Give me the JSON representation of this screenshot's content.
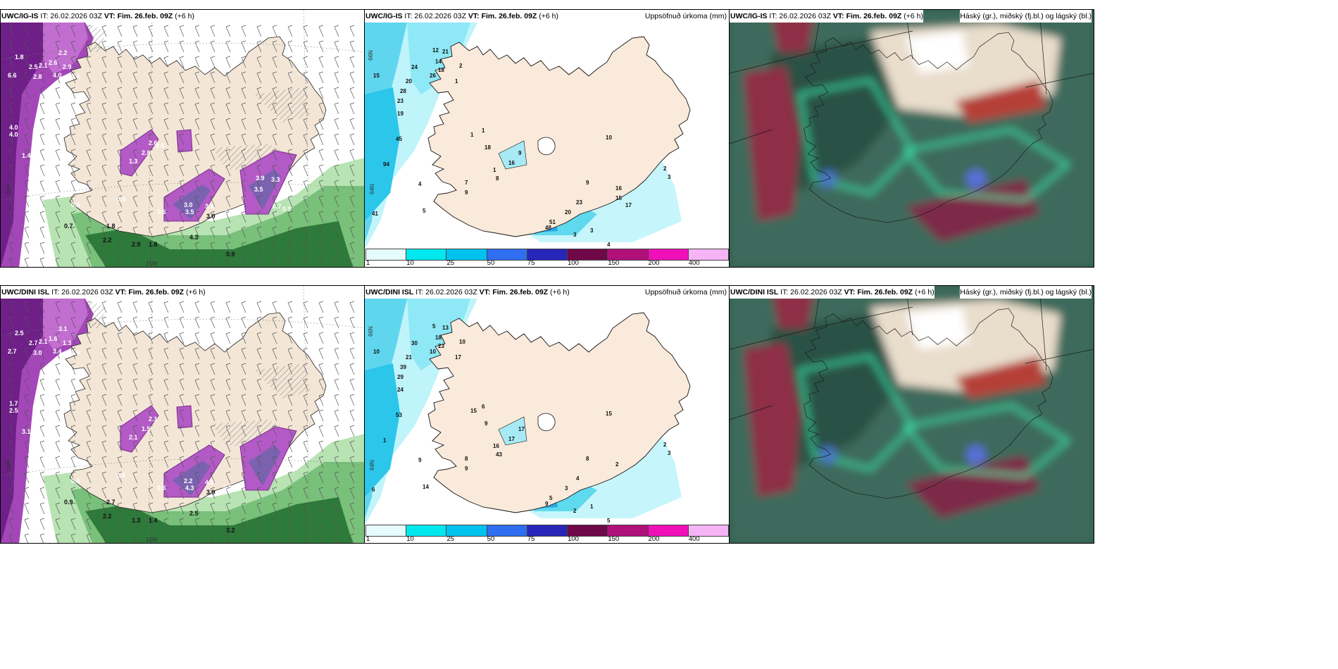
{
  "panels": [
    {
      "id": "p1",
      "model": "UWC/IG-IS",
      "it": "IT: 26.02.2026 03Z",
      "vt": "VT: Fim. 26.feb. 09Z",
      "lead": "(+6 h)",
      "right": "",
      "type": "precip-rate"
    },
    {
      "id": "p2",
      "model": "UWC/IG-IS",
      "it": "IT: 26.02.2026 03Z",
      "vt": "VT: Fim. 26.feb. 09Z",
      "lead": "(+6 h)",
      "right": "Uppsöfnuð úrkoma (mm)",
      "type": "accum"
    },
    {
      "id": "p3",
      "model": "UWC/IG-IS",
      "it": "IT: 26.02.2026 03Z",
      "vt": "VT: Fim. 26.feb. 09Z",
      "lead": "(+6 h)",
      "right": "Háský (gr.), miðský (fj.bl.) og lágský (bl.)",
      "type": "cloud"
    },
    {
      "id": "p4",
      "model": "UWC/DINI ISL",
      "it": "IT: 26.02.2026 03Z",
      "vt": "VT: Fim. 26.feb. 09Z",
      "lead": "(+6 h)",
      "right": "",
      "type": "precip-rate"
    },
    {
      "id": "p5",
      "model": "UWC/DINI ISL",
      "it": "IT: 26.02.2026 03Z",
      "vt": "VT: Fim. 26.feb. 09Z",
      "lead": "(+6 h)",
      "right": "Uppsöfnuð úrkoma (mm)",
      "type": "accum"
    },
    {
      "id": "p6",
      "model": "UWC/DINI ISL",
      "it": "IT: 26.02.2026 03Z",
      "vt": "VT: Fim. 26.feb. 09Z",
      "lead": "(+6 h)",
      "right": "Háský (gr.), miðský (fj.bl.) og lágský (bl.)",
      "type": "cloud"
    }
  ],
  "colorbar": {
    "labels": [
      "1",
      "10",
      "25",
      "50",
      "75",
      "100",
      "150",
      "200",
      "400"
    ],
    "colors": [
      "#e6fbfd",
      "#00e8ee",
      "#00c2ee",
      "#2f6ef0",
      "#2626b8",
      "#6e0848",
      "#b0107a",
      "#f010b8",
      "#f6b4f6"
    ]
  },
  "axis_labels": {
    "lat66": "66N",
    "lat64": "64N",
    "lon15": "15W"
  },
  "precip_values": {
    "p1": [
      "1.8",
      "2.5",
      "2.8",
      "4.0",
      "2.1",
      "2.6",
      "2.2",
      "2.9",
      "4.0",
      "2.4",
      "6.6",
      "4.0",
      "1.4",
      "1.9",
      "2.6",
      "2.8",
      "1.3",
      "3.0",
      "3.5",
      "3.4",
      "3.0",
      "2.9",
      "0.9",
      "0.8",
      "0.7",
      "0.6",
      "1.8",
      "2.2",
      "2.9",
      "1.8",
      "4.3",
      "0.9",
      "2.6",
      "3.9",
      "3.5",
      "3.3",
      "0.7",
      "0.9"
    ],
    "p4": [
      "2.5",
      "2.7",
      "3.0",
      "1.7",
      "2.1",
      "1.6",
      "3.1",
      "1.3",
      "3.4",
      "1.9",
      "2.7",
      "2.5",
      "3.1",
      "3.6",
      "2.1",
      "1.5",
      "2.1",
      "2.2",
      "4.3",
      "4.0",
      "3.9",
      "0.7",
      "0.6",
      "0.6",
      "0.9",
      "0.6",
      "2.7",
      "2.2",
      "1.3",
      "1.4",
      "2.5",
      "3.2"
    ]
  },
  "accum_values": {
    "p2": [
      "15",
      "19",
      "23",
      "28",
      "20",
      "24",
      "26",
      "12",
      "14",
      "18",
      "21",
      "2",
      "1",
      "45",
      "94",
      "41",
      "4",
      "5",
      "1",
      "7",
      "9",
      "18",
      "16",
      "9",
      "1",
      "8",
      "10",
      "9",
      "16",
      "20",
      "23",
      "51",
      "48",
      "3",
      "3",
      "4",
      "1",
      "2",
      "3",
      "17",
      "15"
    ],
    "p5": [
      "10",
      "24",
      "29",
      "39",
      "21",
      "30",
      "10",
      "5",
      "18",
      "23",
      "13",
      "10",
      "17",
      "53",
      "1",
      "6",
      "9",
      "14",
      "15",
      "8",
      "9",
      "9",
      "17",
      "17",
      "16",
      "43",
      "15",
      "8",
      "2",
      "3",
      "4",
      "5",
      "9",
      "2",
      "1",
      "5",
      "6",
      "2",
      "3"
    ]
  }
}
